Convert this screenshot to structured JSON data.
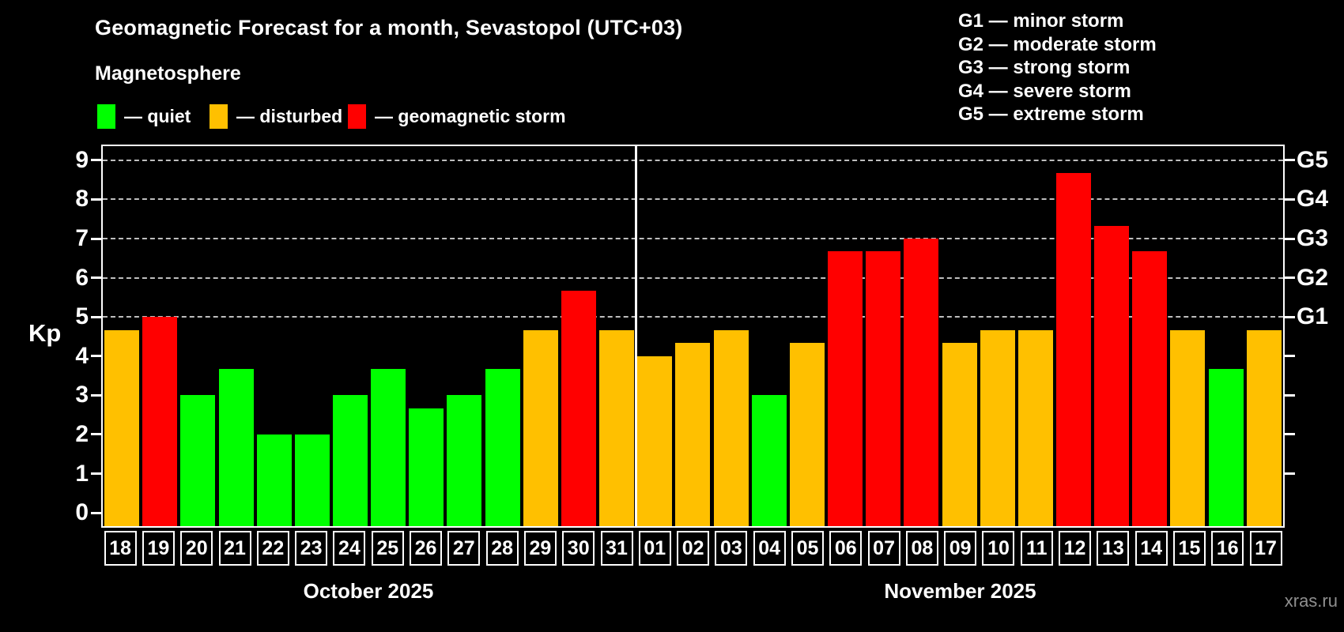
{
  "title": "Geomagnetic Forecast for a month, Sevastopol (UTC+03)",
  "subtitle": "Magnetosphere",
  "legend": {
    "items": [
      {
        "key": "quiet",
        "label": "— quiet",
        "color": "#00ff00"
      },
      {
        "key": "disturbed",
        "label": "— disturbed",
        "color": "#ffc000"
      },
      {
        "key": "storm",
        "label": "— geomagnetic storm",
        "color": "#ff0000"
      }
    ]
  },
  "g_scale_legend": [
    "G1 — minor storm",
    "G2 — moderate storm",
    "G3 — strong storm",
    "G4 — severe storm",
    "G5 — extreme storm"
  ],
  "y_axis": {
    "label": "Kp",
    "ticks": [
      "0",
      "1",
      "2",
      "3",
      "4",
      "5",
      "6",
      "7",
      "8",
      "9"
    ]
  },
  "right_axis": {
    "labels": [
      {
        "label": "G1",
        "kp": 5
      },
      {
        "label": "G2",
        "kp": 6
      },
      {
        "label": "G3",
        "kp": 7
      },
      {
        "label": "G4",
        "kp": 8
      },
      {
        "label": "G5",
        "kp": 9
      }
    ]
  },
  "watermark": "xras.ru",
  "status_colors": {
    "quiet": "#00ff00",
    "disturbed": "#ffc000",
    "storm": "#ff0000"
  },
  "chart_data": {
    "type": "bar",
    "ylabel": "Kp",
    "ylim": [
      -0.34,
      9.36
    ],
    "gridlines_kp": [
      5,
      6,
      7,
      8,
      9
    ],
    "grid": "horizontal dashed at storm levels only",
    "legend_position": "top-left",
    "months": [
      {
        "label": "October 2025",
        "days": [
          {
            "day": "18",
            "kp": 4.67,
            "status": "disturbed"
          },
          {
            "day": "19",
            "kp": 5.0,
            "status": "storm"
          },
          {
            "day": "20",
            "kp": 3.0,
            "status": "quiet"
          },
          {
            "day": "21",
            "kp": 3.67,
            "status": "quiet"
          },
          {
            "day": "22",
            "kp": 2.0,
            "status": "quiet"
          },
          {
            "day": "23",
            "kp": 2.0,
            "status": "quiet"
          },
          {
            "day": "24",
            "kp": 3.0,
            "status": "quiet"
          },
          {
            "day": "25",
            "kp": 3.67,
            "status": "quiet"
          },
          {
            "day": "26",
            "kp": 2.67,
            "status": "quiet"
          },
          {
            "day": "27",
            "kp": 3.0,
            "status": "quiet"
          },
          {
            "day": "28",
            "kp": 3.67,
            "status": "quiet"
          },
          {
            "day": "29",
            "kp": 4.67,
            "status": "disturbed"
          },
          {
            "day": "30",
            "kp": 5.67,
            "status": "storm"
          },
          {
            "day": "31",
            "kp": 4.67,
            "status": "disturbed"
          }
        ]
      },
      {
        "label": "November 2025",
        "days": [
          {
            "day": "01",
            "kp": 4.0,
            "status": "disturbed"
          },
          {
            "day": "02",
            "kp": 4.33,
            "status": "disturbed"
          },
          {
            "day": "03",
            "kp": 4.67,
            "status": "disturbed"
          },
          {
            "day": "04",
            "kp": 3.0,
            "status": "quiet"
          },
          {
            "day": "05",
            "kp": 4.33,
            "status": "disturbed"
          },
          {
            "day": "06",
            "kp": 6.67,
            "status": "storm"
          },
          {
            "day": "07",
            "kp": 6.67,
            "status": "storm"
          },
          {
            "day": "08",
            "kp": 7.0,
            "status": "storm"
          },
          {
            "day": "09",
            "kp": 4.33,
            "status": "disturbed"
          },
          {
            "day": "10",
            "kp": 4.67,
            "status": "disturbed"
          },
          {
            "day": "11",
            "kp": 4.67,
            "status": "disturbed"
          },
          {
            "day": "12",
            "kp": 8.67,
            "status": "storm"
          },
          {
            "day": "13",
            "kp": 7.33,
            "status": "storm"
          },
          {
            "day": "14",
            "kp": 6.67,
            "status": "storm"
          },
          {
            "day": "15",
            "kp": 4.67,
            "status": "disturbed"
          },
          {
            "day": "16",
            "kp": 3.67,
            "status": "quiet"
          },
          {
            "day": "17",
            "kp": 4.67,
            "status": "disturbed"
          }
        ]
      }
    ]
  }
}
